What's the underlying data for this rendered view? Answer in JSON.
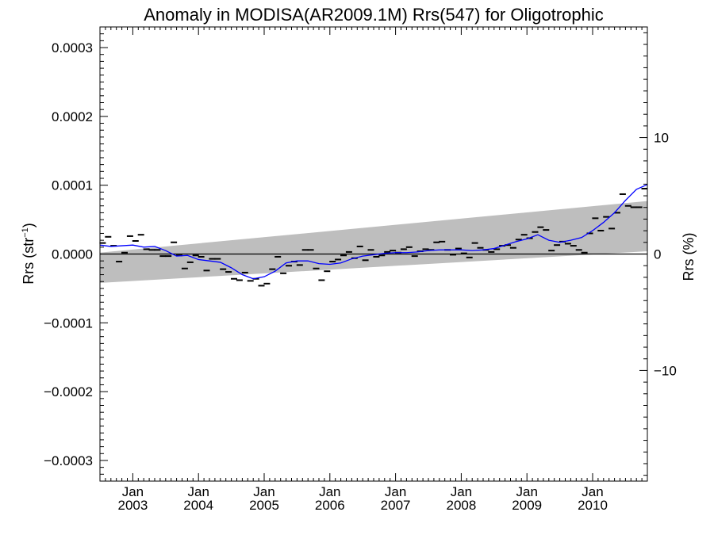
{
  "chart_data": {
    "type": "line",
    "title": "Anomaly in MODISA(AR2009.1M) Rrs(547) for Oligotrophic",
    "ylabel": "Rrs (str",
    "ylabel_sup": "−1",
    "ylabel_close": ")",
    "y2label": "Rrs (%)",
    "xlim": [
      "2002-07-01",
      "2010-11-01"
    ],
    "ylim": [
      -0.00033,
      0.00033
    ],
    "y2lim": [
      -19.5,
      19.5
    ],
    "grid": false,
    "yticks": [
      {
        "value": 0.0003,
        "label": "0.0003"
      },
      {
        "value": 0.0002,
        "label": "0.0002"
      },
      {
        "value": 0.0001,
        "label": "0.0001"
      },
      {
        "value": 0.0,
        "label": "0.0000"
      },
      {
        "value": -0.0001,
        "label": "−0.0001"
      },
      {
        "value": -0.0002,
        "label": "−0.0002"
      },
      {
        "value": -0.0003,
        "label": "−0.0003"
      }
    ],
    "y2ticks": [
      {
        "value": 10,
        "label": "10"
      },
      {
        "value": 0,
        "label": "0"
      },
      {
        "value": -10,
        "label": "−10"
      }
    ],
    "xticks": [
      {
        "date": "2003-01-01",
        "month": "Jan",
        "year": "2003"
      },
      {
        "date": "2004-01-01",
        "month": "Jan",
        "year": "2004"
      },
      {
        "date": "2005-01-01",
        "month": "Jan",
        "year": "2005"
      },
      {
        "date": "2006-01-01",
        "month": "Jan",
        "year": "2006"
      },
      {
        "date": "2007-01-01",
        "month": "Jan",
        "year": "2007"
      },
      {
        "date": "2008-01-01",
        "month": "Jan",
        "year": "2008"
      },
      {
        "date": "2009-01-01",
        "month": "Jan",
        "year": "2009"
      },
      {
        "date": "2010-01-01",
        "month": "Jan",
        "year": "2010"
      }
    ],
    "band": {
      "color": "#bebebe",
      "upper": [
        {
          "x": "2002-07-01",
          "y": 2e-06
        },
        {
          "x": "2010-11-01",
          "y": 7.7e-05
        }
      ],
      "lower": [
        {
          "x": "2002-07-01",
          "y": -4.2e-05
        },
        {
          "x": "2010-11-01",
          "y": 4e-06
        }
      ]
    },
    "zero_line": {
      "y": 0.0,
      "color": "#000000"
    },
    "series": [
      {
        "kind": "monthly-markers",
        "color": "#000000",
        "points": [
          {
            "x": "2002-07",
            "y": 1.6e-05
          },
          {
            "x": "2002-08",
            "y": 2.5e-05
          },
          {
            "x": "2002-09",
            "y": 1.2e-05
          },
          {
            "x": "2002-10",
            "y": -1.1e-05
          },
          {
            "x": "2002-11",
            "y": 2e-06
          },
          {
            "x": "2002-12",
            "y": 2.6e-05
          },
          {
            "x": "2003-01",
            "y": 1.9e-05
          },
          {
            "x": "2003-02",
            "y": 2.8e-05
          },
          {
            "x": "2003-03",
            "y": 7e-06
          },
          {
            "x": "2003-04",
            "y": 6e-06
          },
          {
            "x": "2003-05",
            "y": 6e-06
          },
          {
            "x": "2003-06",
            "y": -3e-06
          },
          {
            "x": "2003-07",
            "y": -3e-06
          },
          {
            "x": "2003-08",
            "y": 1.7e-05
          },
          {
            "x": "2003-09",
            "y": -2e-06
          },
          {
            "x": "2003-10",
            "y": -2.1e-05
          },
          {
            "x": "2003-11",
            "y": -1.2e-05
          },
          {
            "x": "2003-12",
            "y": -2e-06
          },
          {
            "x": "2004-01",
            "y": -4e-06
          },
          {
            "x": "2004-02",
            "y": -2.4e-05
          },
          {
            "x": "2004-03",
            "y": -7e-06
          },
          {
            "x": "2004-04",
            "y": -7e-06
          },
          {
            "x": "2004-05",
            "y": -2.2e-05
          },
          {
            "x": "2004-06",
            "y": -2.6e-05
          },
          {
            "x": "2004-07",
            "y": -3.6e-05
          },
          {
            "x": "2004-08",
            "y": -3.8e-05
          },
          {
            "x": "2004-09",
            "y": -2.7e-05
          },
          {
            "x": "2004-10",
            "y": -3.9e-05
          },
          {
            "x": "2004-11",
            "y": -3.6e-05
          },
          {
            "x": "2004-12",
            "y": -4.6e-05
          },
          {
            "x": "2005-01",
            "y": -4.3e-05
          },
          {
            "x": "2005-02",
            "y": -2.2e-05
          },
          {
            "x": "2005-03",
            "y": -4e-06
          },
          {
            "x": "2005-04",
            "y": -2.8e-05
          },
          {
            "x": "2005-05",
            "y": -1.7e-05
          },
          {
            "x": "2005-06",
            "y": -1.1e-05
          },
          {
            "x": "2005-07",
            "y": -1.6e-05
          },
          {
            "x": "2005-08",
            "y": 6e-06
          },
          {
            "x": "2005-09",
            "y": 6e-06
          },
          {
            "x": "2005-10",
            "y": -2.1e-05
          },
          {
            "x": "2005-11",
            "y": -3.8e-05
          },
          {
            "x": "2005-12",
            "y": -2.5e-05
          },
          {
            "x": "2006-01",
            "y": -1.1e-05
          },
          {
            "x": "2006-02",
            "y": -8e-06
          },
          {
            "x": "2006-03",
            "y": -2e-06
          },
          {
            "x": "2006-04",
            "y": 3e-06
          },
          {
            "x": "2006-05",
            "y": -6e-06
          },
          {
            "x": "2006-06",
            "y": 1.1e-05
          },
          {
            "x": "2006-07",
            "y": -9e-06
          },
          {
            "x": "2006-08",
            "y": 6e-06
          },
          {
            "x": "2006-09",
            "y": -4e-06
          },
          {
            "x": "2006-10",
            "y": -2e-06
          },
          {
            "x": "2006-11",
            "y": 3e-06
          },
          {
            "x": "2006-12",
            "y": 5e-06
          },
          {
            "x": "2007-01",
            "y": 2e-06
          },
          {
            "x": "2007-02",
            "y": 7e-06
          },
          {
            "x": "2007-03",
            "y": 1e-05
          },
          {
            "x": "2007-04",
            "y": -3e-06
          },
          {
            "x": "2007-05",
            "y": 4e-06
          },
          {
            "x": "2007-06",
            "y": 7e-06
          },
          {
            "x": "2007-07",
            "y": 6e-06
          },
          {
            "x": "2007-08",
            "y": 1.7e-05
          },
          {
            "x": "2007-09",
            "y": 1.8e-05
          },
          {
            "x": "2007-10",
            "y": 6e-06
          },
          {
            "x": "2007-11",
            "y": -1e-06
          },
          {
            "x": "2007-12",
            "y": 8e-06
          },
          {
            "x": "2008-01",
            "y": 1e-06
          },
          {
            "x": "2008-02",
            "y": -5e-06
          },
          {
            "x": "2008-03",
            "y": 1.6e-05
          },
          {
            "x": "2008-04",
            "y": 9e-06
          },
          {
            "x": "2008-05",
            "y": 6e-06
          },
          {
            "x": "2008-06",
            "y": 3e-06
          },
          {
            "x": "2008-07",
            "y": 7e-06
          },
          {
            "x": "2008-08",
            "y": 1.2e-05
          },
          {
            "x": "2008-09",
            "y": 1.3e-05
          },
          {
            "x": "2008-10",
            "y": 9e-06
          },
          {
            "x": "2008-11",
            "y": 2.1e-05
          },
          {
            "x": "2008-12",
            "y": 2.8e-05
          },
          {
            "x": "2009-01",
            "y": 2.3e-05
          },
          {
            "x": "2009-02",
            "y": 3.2e-05
          },
          {
            "x": "2009-03",
            "y": 3.9e-05
          },
          {
            "x": "2009-04",
            "y": 3.5e-05
          },
          {
            "x": "2009-05",
            "y": 5e-06
          },
          {
            "x": "2009-06",
            "y": 1.3e-05
          },
          {
            "x": "2009-07",
            "y": 1.8e-05
          },
          {
            "x": "2009-08",
            "y": 1.5e-05
          },
          {
            "x": "2009-09",
            "y": 1.2e-05
          },
          {
            "x": "2009-10",
            "y": 6e-06
          },
          {
            "x": "2009-11",
            "y": 2e-06
          },
          {
            "x": "2009-12",
            "y": 3e-05
          },
          {
            "x": "2010-01",
            "y": 5.2e-05
          },
          {
            "x": "2010-02",
            "y": 3.4e-05
          },
          {
            "x": "2010-03",
            "y": 5.4e-05
          },
          {
            "x": "2010-04",
            "y": 3.7e-05
          },
          {
            "x": "2010-05",
            "y": 6e-05
          },
          {
            "x": "2010-06",
            "y": 8.7e-05
          },
          {
            "x": "2010-07",
            "y": 7e-05
          },
          {
            "x": "2010-08",
            "y": 6.8e-05
          },
          {
            "x": "2010-09",
            "y": 6.8e-05
          },
          {
            "x": "2010-10",
            "y": 9.5e-05
          }
        ]
      },
      {
        "kind": "running-mean",
        "color": "#0000ff",
        "points": [
          {
            "x": "2002-07",
            "y": 1.3e-05
          },
          {
            "x": "2002-09",
            "y": 1.1e-05
          },
          {
            "x": "2002-11",
            "y": 1.2e-05
          },
          {
            "x": "2003-01",
            "y": 1.3e-05
          },
          {
            "x": "2003-03",
            "y": 1e-05
          },
          {
            "x": "2003-05",
            "y": 1.1e-05
          },
          {
            "x": "2003-07",
            "y": 5e-06
          },
          {
            "x": "2003-09",
            "y": -3e-06
          },
          {
            "x": "2003-11",
            "y": -2e-06
          },
          {
            "x": "2004-01",
            "y": -8e-06
          },
          {
            "x": "2004-03",
            "y": -1e-05
          },
          {
            "x": "2004-05",
            "y": -1.2e-05
          },
          {
            "x": "2004-07",
            "y": -2e-05
          },
          {
            "x": "2004-09",
            "y": -3e-05
          },
          {
            "x": "2004-11",
            "y": -3.6e-05
          },
          {
            "x": "2005-01",
            "y": -3.3e-05
          },
          {
            "x": "2005-03",
            "y": -2.5e-05
          },
          {
            "x": "2005-05",
            "y": -1.3e-05
          },
          {
            "x": "2005-07",
            "y": -1e-05
          },
          {
            "x": "2005-09",
            "y": -1e-05
          },
          {
            "x": "2005-11",
            "y": -1.4e-05
          },
          {
            "x": "2006-01",
            "y": -1.5e-05
          },
          {
            "x": "2006-03",
            "y": -1.3e-05
          },
          {
            "x": "2006-05",
            "y": -7e-06
          },
          {
            "x": "2006-07",
            "y": -3e-06
          },
          {
            "x": "2006-09",
            "y": -1e-06
          },
          {
            "x": "2006-11",
            "y": 1e-06
          },
          {
            "x": "2007-01",
            "y": 2e-06
          },
          {
            "x": "2007-03",
            "y": 2e-06
          },
          {
            "x": "2007-05",
            "y": 3e-06
          },
          {
            "x": "2007-07",
            "y": 5e-06
          },
          {
            "x": "2007-09",
            "y": 6e-06
          },
          {
            "x": "2007-11",
            "y": 6e-06
          },
          {
            "x": "2008-01",
            "y": 6e-06
          },
          {
            "x": "2008-03",
            "y": 5e-06
          },
          {
            "x": "2008-05",
            "y": 6e-06
          },
          {
            "x": "2008-07",
            "y": 8e-06
          },
          {
            "x": "2008-09",
            "y": 1.3e-05
          },
          {
            "x": "2008-11",
            "y": 1.8e-05
          },
          {
            "x": "2009-01",
            "y": 2.2e-05
          },
          {
            "x": "2009-03",
            "y": 2.8e-05
          },
          {
            "x": "2009-05",
            "y": 2e-05
          },
          {
            "x": "2009-07",
            "y": 1.7e-05
          },
          {
            "x": "2009-09",
            "y": 2e-05
          },
          {
            "x": "2009-11",
            "y": 2.4e-05
          },
          {
            "x": "2010-01",
            "y": 3.4e-05
          },
          {
            "x": "2010-03",
            "y": 4.6e-05
          },
          {
            "x": "2010-05",
            "y": 6e-05
          },
          {
            "x": "2010-07",
            "y": 7.8e-05
          },
          {
            "x": "2010-09",
            "y": 9.4e-05
          },
          {
            "x": "2010-11",
            "y": 0.000101
          }
        ]
      }
    ]
  }
}
